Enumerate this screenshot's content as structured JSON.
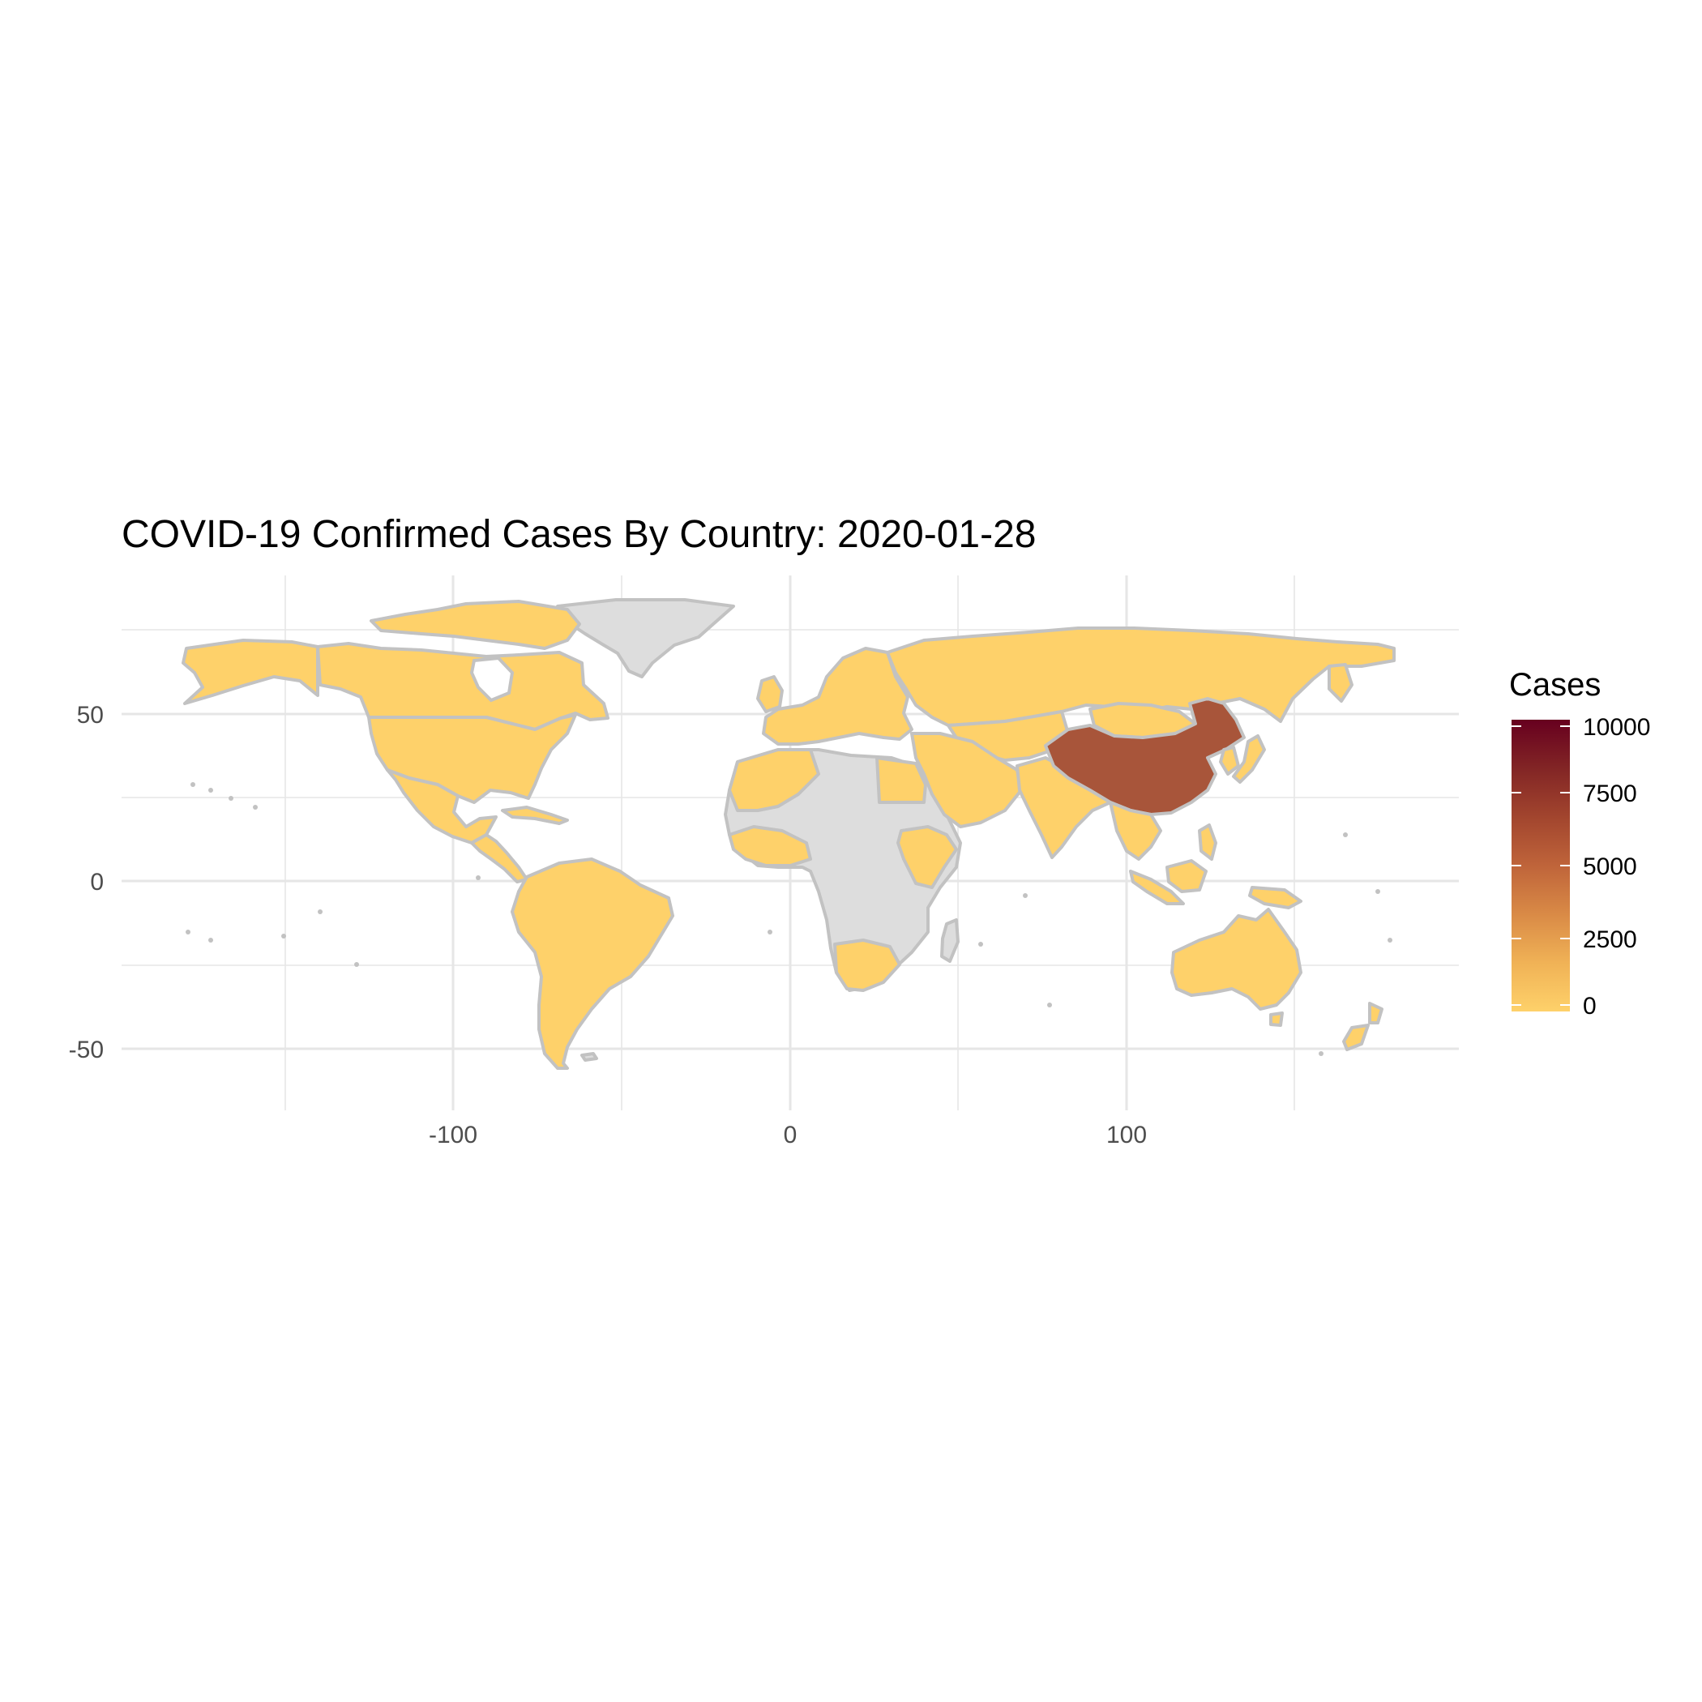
{
  "chart_data": {
    "type": "choropleth map",
    "title": "COVID-19 Confirmed Cases By Country: 2020-01-28",
    "xlim": [
      -180,
      180
    ],
    "ylim": [
      -58,
      84
    ],
    "x_ticks": [
      -100,
      0,
      100
    ],
    "y_ticks": [
      -50,
      0,
      50
    ],
    "grid": true,
    "legend": {
      "title": "Cases",
      "position": "right",
      "type": "continuous colorbar",
      "breaks": [
        0,
        2500,
        5000,
        7500,
        10000
      ],
      "range": [
        0,
        10000
      ],
      "color_low": "#fed16a",
      "color_high": "#67001f",
      "stops": [
        "#fed16a",
        "#f0b256",
        "#d98a46",
        "#bf643a",
        "#a2452e",
        "#822525",
        "#67001f"
      ]
    },
    "colors": {
      "no_data": "#dddddd",
      "border": "#c2c2c2",
      "reported_low": "#fed16a",
      "china": "#a8553a"
    },
    "regions": [
      {
        "name": "China",
        "cases": 5509
      },
      {
        "name": "Canada",
        "cases": 0
      },
      {
        "name": "United States",
        "cases": 0
      },
      {
        "name": "Mexico",
        "cases": 0
      },
      {
        "name": "Central America",
        "cases": 0
      },
      {
        "name": "Colombia",
        "cases": 0
      },
      {
        "name": "Venezuela",
        "cases": 0
      },
      {
        "name": "Brazil",
        "cases": 0
      },
      {
        "name": "Peru",
        "cases": 0
      },
      {
        "name": "Bolivia",
        "cases": 0
      },
      {
        "name": "Argentina",
        "cases": 0
      },
      {
        "name": "Chile",
        "cases": 0
      },
      {
        "name": "Russia",
        "cases": 0
      },
      {
        "name": "Kazakhstan",
        "cases": 0
      },
      {
        "name": "Mongolia",
        "cases": 0
      },
      {
        "name": "India",
        "cases": 0
      },
      {
        "name": "Japan",
        "cases": 0
      },
      {
        "name": "Australia",
        "cases": 0
      },
      {
        "name": "New Zealand",
        "cases": 0
      },
      {
        "name": "Greenland",
        "cases": null
      },
      {
        "name": "Africa (no report)",
        "cases": null
      }
    ]
  }
}
